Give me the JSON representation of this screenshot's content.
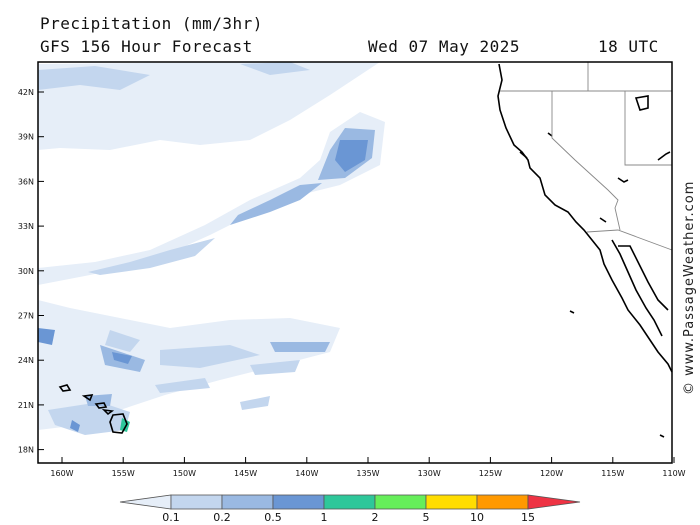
{
  "header": {
    "title": "Precipitation (mm/3hr)",
    "subtitle": "GFS 156 Hour Forecast",
    "date": "Wed 07 May 2025",
    "time": "18 UTC"
  },
  "map": {
    "lat_labels": [
      "42N",
      "39N",
      "36N",
      "33N",
      "30N",
      "27N",
      "24N",
      "21N",
      "18N"
    ],
    "lon_labels": [
      "160W",
      "155W",
      "150W",
      "145W",
      "140W",
      "135W",
      "130W",
      "125W",
      "120W",
      "115W",
      "110W"
    ],
    "credit": "© www.PassageWeather.com"
  },
  "legend": {
    "ticks": [
      "0.1",
      "0.2",
      "0.5",
      "1",
      "2",
      "5",
      "10",
      "15"
    ],
    "colors": [
      "#e6eef8",
      "#c3d6ee",
      "#9ab9e2",
      "#6a96d4",
      "#2ec79a",
      "#66ee5a",
      "#ffdd00",
      "#ff9900",
      "#ee3344"
    ]
  }
}
